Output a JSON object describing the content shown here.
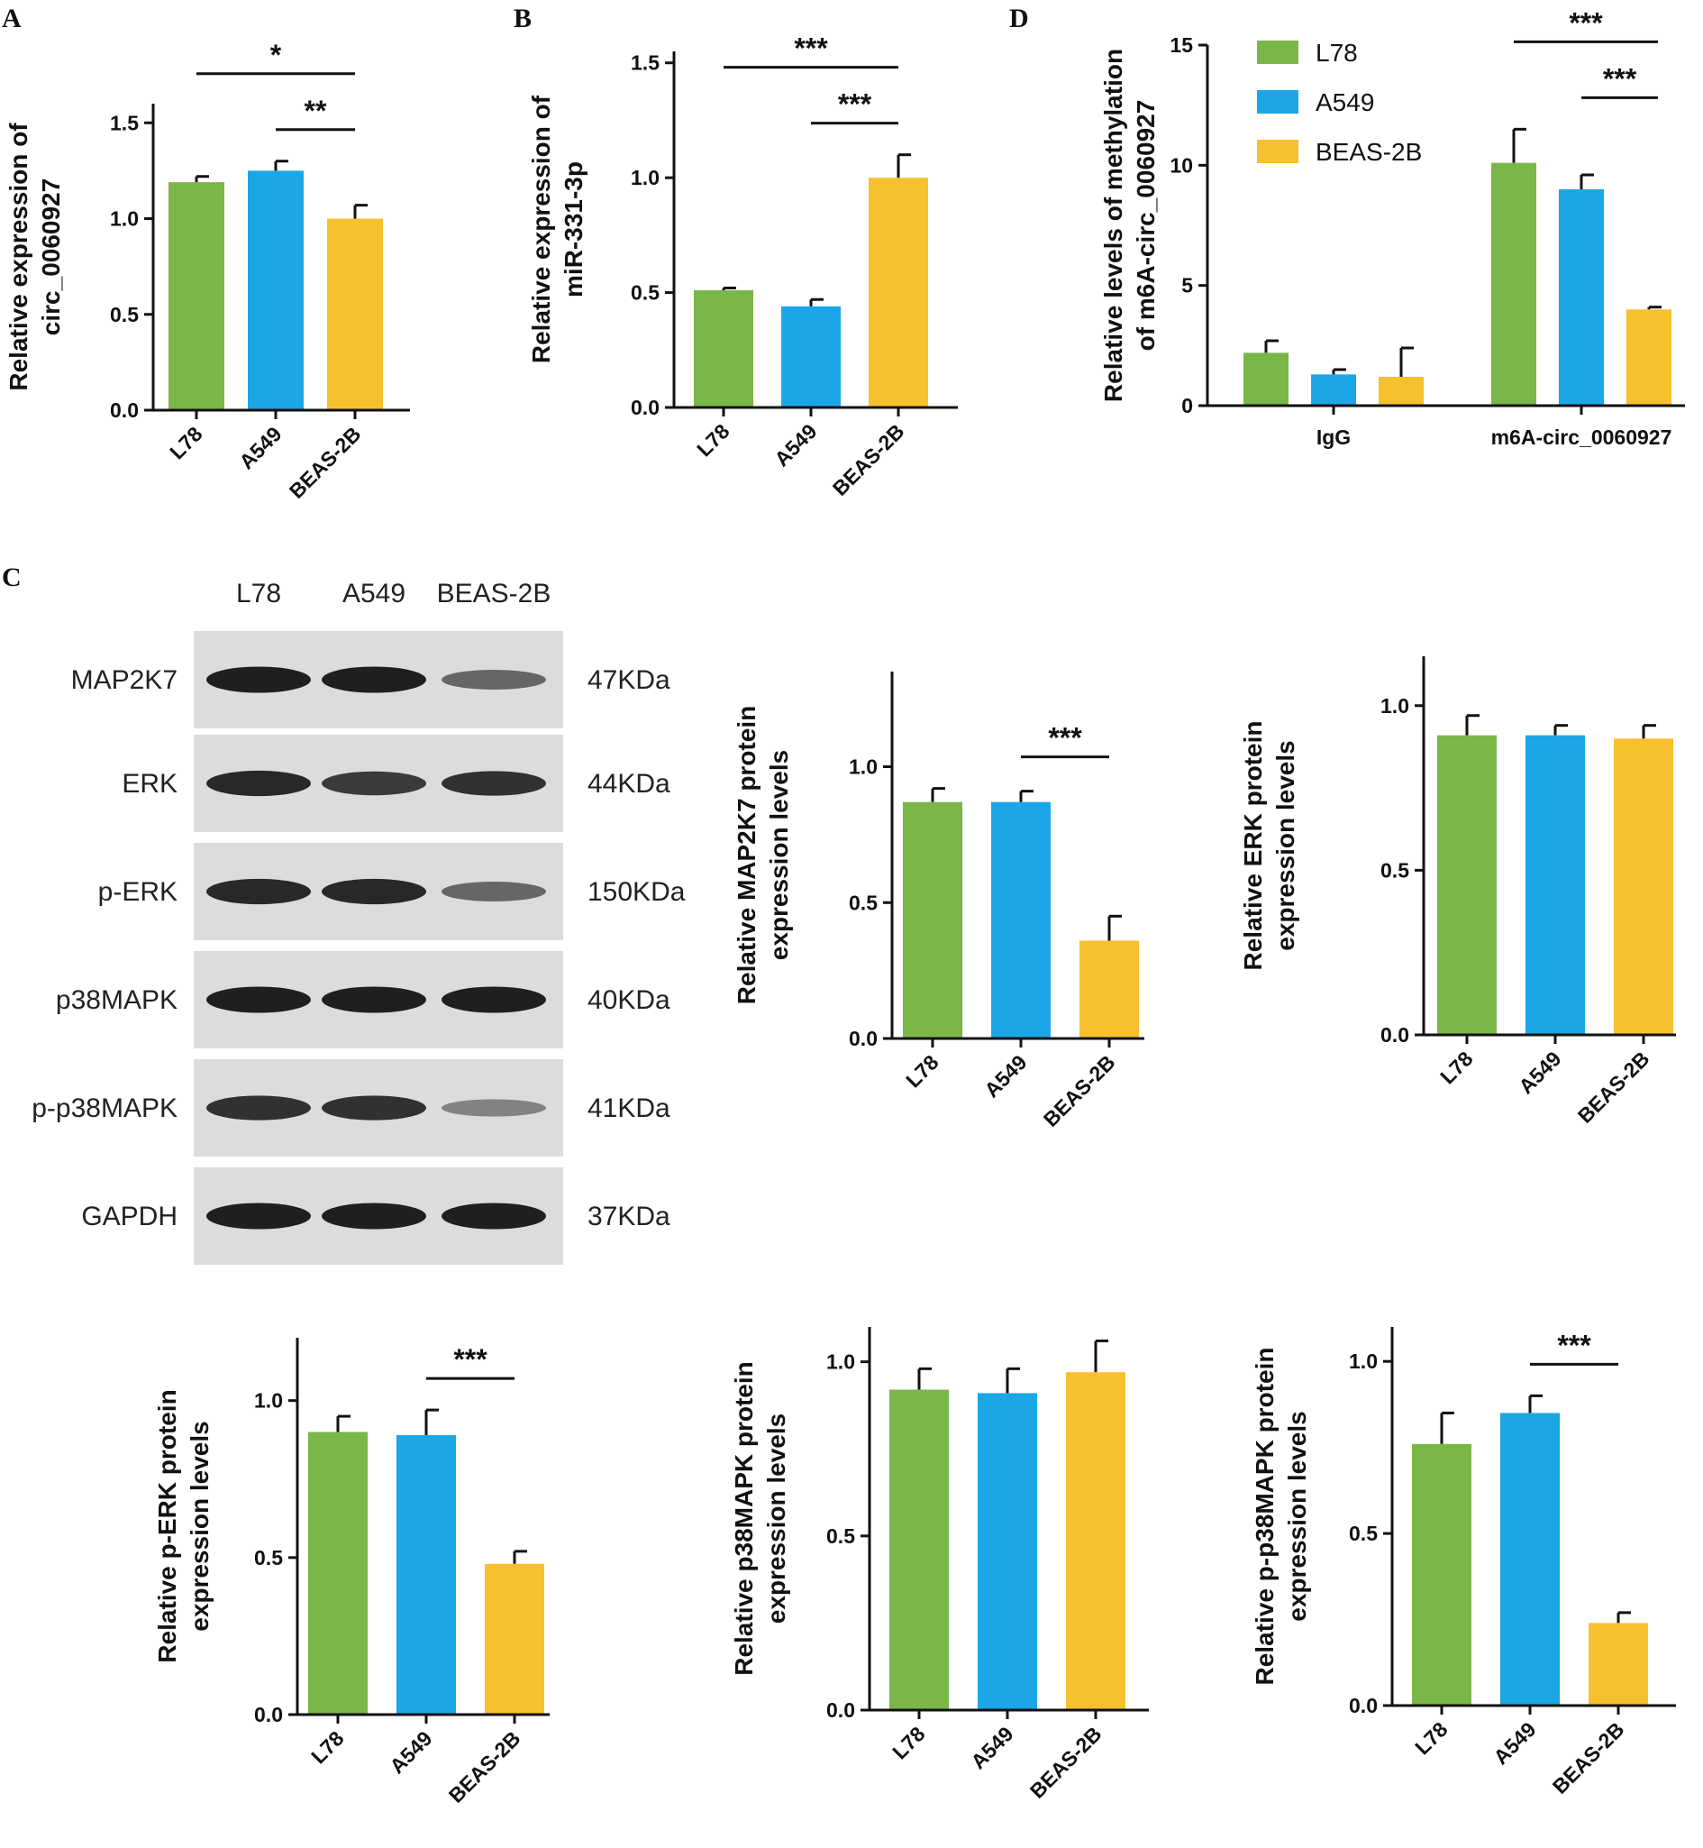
{
  "colors": {
    "L78": "#7ab648",
    "A549": "#1ba6e8",
    "BEAS-2B": "#f6c02f",
    "error": "#111111"
  },
  "panels": {
    "A": "A",
    "B": "B",
    "C": "C",
    "D": "D"
  },
  "blot": {
    "lanes": [
      "L78",
      "A549",
      "BEAS-2B"
    ],
    "rows": [
      {
        "label": "MAP2K7",
        "kda": "47KDa",
        "intensity": [
          0.95,
          0.95,
          0.55
        ]
      },
      {
        "label": "ERK",
        "kda": "44KDa",
        "intensity": [
          0.9,
          0.8,
          0.85
        ]
      },
      {
        "label": "p-ERK",
        "kda": "150KDa",
        "intensity": [
          0.9,
          0.9,
          0.55
        ]
      },
      {
        "label": "p38MAPK",
        "kda": "40KDa",
        "intensity": [
          0.95,
          0.95,
          0.95
        ]
      },
      {
        "label": "p-p38MAPK",
        "kda": "41KDa",
        "intensity": [
          0.85,
          0.85,
          0.4
        ]
      },
      {
        "label": "GAPDH",
        "kda": "37KDa",
        "intensity": [
          0.95,
          0.95,
          0.95
        ]
      }
    ]
  },
  "chart_data": [
    {
      "id": "A",
      "type": "bar",
      "categories": [
        "L78",
        "A549",
        "BEAS-2B"
      ],
      "values": [
        1.19,
        1.25,
        1.0
      ],
      "errors": [
        0.03,
        0.05,
        0.07
      ],
      "ylabel": [
        "Relative expression of",
        "circ_0060927"
      ],
      "ylim": [
        0,
        1.6
      ],
      "yticks": [
        0.0,
        0.5,
        1.0,
        1.5
      ],
      "yticklabels": [
        "0.0",
        "0.5",
        "1.0",
        "1.5"
      ],
      "significance": [
        {
          "from": 0,
          "to": 2,
          "label": "*"
        },
        {
          "from": 1,
          "to": 2,
          "label": "**"
        }
      ]
    },
    {
      "id": "B",
      "type": "bar",
      "categories": [
        "L78",
        "A549",
        "BEAS-2B"
      ],
      "values": [
        0.51,
        0.44,
        1.0
      ],
      "errors": [
        0.01,
        0.03,
        0.1
      ],
      "ylabel": [
        "Relative expression of",
        "miR-331-3p"
      ],
      "ylim": [
        0,
        1.55
      ],
      "yticks": [
        0.0,
        0.5,
        1.0,
        1.5
      ],
      "yticklabels": [
        "0.0",
        "0.5",
        "1.0",
        "1.5"
      ],
      "significance": [
        {
          "from": 0,
          "to": 2,
          "label": "***"
        },
        {
          "from": 1,
          "to": 2,
          "label": "***"
        }
      ]
    },
    {
      "id": "D",
      "type": "bar",
      "categories": [
        "IgG",
        "m6A-circ_0060927"
      ],
      "series": [
        {
          "name": "L78",
          "values": [
            2.2,
            10.1
          ],
          "errors": [
            0.5,
            1.4
          ]
        },
        {
          "name": "A549",
          "values": [
            1.3,
            9.0
          ],
          "errors": [
            0.2,
            0.6
          ]
        },
        {
          "name": "BEAS-2B",
          "values": [
            1.2,
            4.0
          ],
          "errors": [
            1.2,
            0.1
          ]
        }
      ],
      "ylabel": [
        "Relative levels of methylation",
        "of m6A-circ_0060927"
      ],
      "ylim": [
        0,
        15
      ],
      "yticks": [
        0,
        5,
        10,
        15
      ],
      "yticklabels": [
        "0",
        "5",
        "10",
        "15"
      ],
      "legend": "top-left",
      "significance": [
        {
          "group": 1,
          "from": 0,
          "to": 2,
          "label": "***"
        },
        {
          "group": 1,
          "from": 1,
          "to": 2,
          "label": "***"
        }
      ]
    },
    {
      "id": "C-MAP2K7",
      "type": "bar",
      "categories": [
        "L78",
        "A549",
        "BEAS-2B"
      ],
      "values": [
        0.87,
        0.87,
        0.36
      ],
      "errors": [
        0.05,
        0.04,
        0.09
      ],
      "ylabel": [
        "Relative MAP2K7 protein",
        "expression levels"
      ],
      "ylim": [
        0,
        1.35
      ],
      "yticks": [
        0.0,
        0.5,
        1.0
      ],
      "yticklabels": [
        "0.0",
        "0.5",
        "1.0"
      ],
      "significance": [
        {
          "from": 1,
          "to": 2,
          "label": "***"
        }
      ]
    },
    {
      "id": "C-ERK",
      "type": "bar",
      "categories": [
        "L78",
        "A549",
        "BEAS-2B"
      ],
      "values": [
        0.91,
        0.91,
        0.9
      ],
      "errors": [
        0.06,
        0.03,
        0.04
      ],
      "ylabel": [
        "Relative ERK protein",
        "expression levels"
      ],
      "ylim": [
        0,
        1.15
      ],
      "yticks": [
        0.0,
        0.5,
        1.0
      ],
      "yticklabels": [
        "0.0",
        "0.5",
        "1.0"
      ],
      "significance": []
    },
    {
      "id": "C-pERK",
      "type": "bar",
      "categories": [
        "L78",
        "A549",
        "BEAS-2B"
      ],
      "values": [
        0.9,
        0.89,
        0.48
      ],
      "errors": [
        0.05,
        0.08,
        0.04
      ],
      "ylabel": [
        "Relative p-ERK protein",
        "expression levels"
      ],
      "ylim": [
        0,
        1.2
      ],
      "yticks": [
        0.0,
        0.5,
        1.0
      ],
      "yticklabels": [
        "0.0",
        "0.5",
        "1.0"
      ],
      "significance": [
        {
          "from": 1,
          "to": 2,
          "label": "***"
        }
      ]
    },
    {
      "id": "C-p38MAPK",
      "type": "bar",
      "categories": [
        "L78",
        "A549",
        "BEAS-2B"
      ],
      "values": [
        0.92,
        0.91,
        0.97
      ],
      "errors": [
        0.06,
        0.07,
        0.09
      ],
      "ylabel": [
        "Relative p38MAPK protein",
        "expression levels"
      ],
      "ylim": [
        0,
        1.1
      ],
      "yticks": [
        0.0,
        0.5,
        1.0
      ],
      "yticklabels": [
        "0.0",
        "0.5",
        "1.0"
      ],
      "significance": []
    },
    {
      "id": "C-pp38MAPK",
      "type": "bar",
      "categories": [
        "L78",
        "A549",
        "BEAS-2B"
      ],
      "values": [
        0.76,
        0.85,
        0.24
      ],
      "errors": [
        0.09,
        0.05,
        0.03
      ],
      "ylabel": [
        "Relative p-p38MAPK protein",
        "expression levels"
      ],
      "ylim": [
        0,
        1.1
      ],
      "yticks": [
        0.0,
        0.5,
        1.0
      ],
      "yticklabels": [
        "0.0",
        "0.5",
        "1.0"
      ],
      "significance": [
        {
          "from": 1,
          "to": 2,
          "label": "***"
        }
      ]
    }
  ]
}
